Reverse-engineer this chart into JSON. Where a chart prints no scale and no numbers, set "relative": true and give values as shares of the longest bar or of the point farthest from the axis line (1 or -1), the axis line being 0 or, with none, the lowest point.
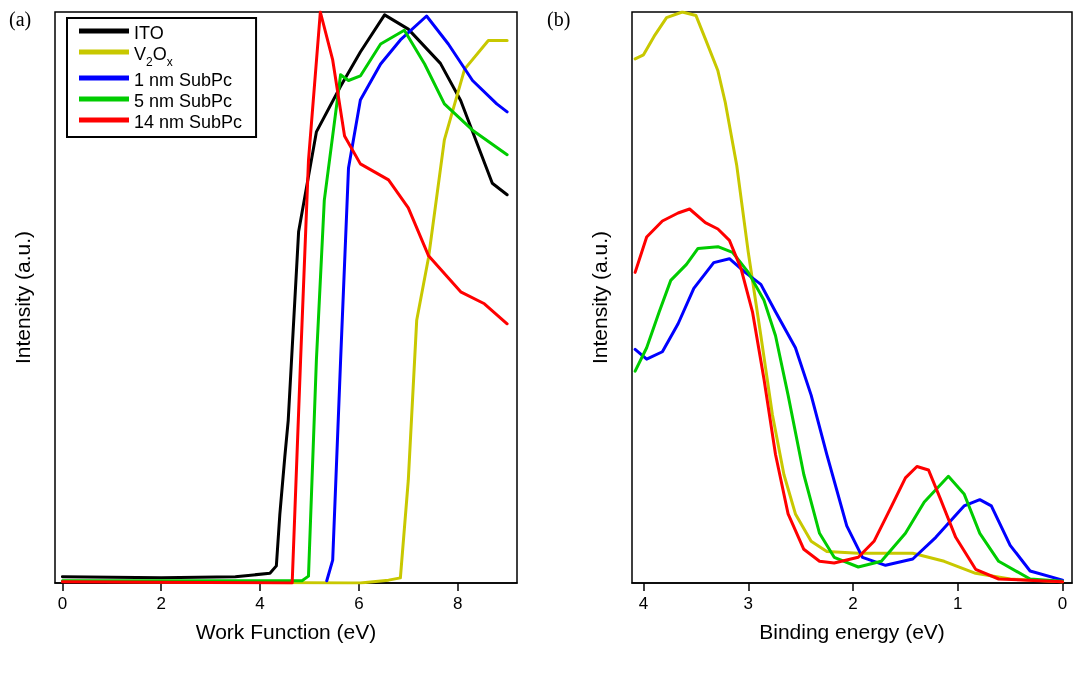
{
  "chart_data": [
    {
      "type": "line",
      "title": "(a)",
      "xlabel": "Work Function (eV)",
      "ylabel": "Intensity (a.u.)",
      "relative": true,
      "legend": "top left",
      "xlim": [
        -0.15,
        9.2
      ],
      "xticks": [
        0,
        2,
        4,
        6,
        8
      ],
      "series": [
        {
          "name": "ITO",
          "color": "#000000",
          "x": [
            0,
            2,
            3.5,
            4.2,
            4.33,
            4.4,
            4.5,
            4.57,
            4.78,
            5.14,
            5.63,
            6.03,
            6.52,
            7.0,
            7.65,
            8.06,
            8.7,
            9
          ],
          "values": [
            0.011,
            0.009,
            0.011,
            0.017,
            0.03,
            0.12,
            0.22,
            0.285,
            0.615,
            0.79,
            0.87,
            0.93,
            0.995,
            0.97,
            0.91,
            0.845,
            0.7,
            0.68
          ]
        },
        {
          "name": "V$_{2}$O$_{x}$",
          "color": "#c8c800",
          "x": [
            0,
            5.8,
            6.03,
            6.6,
            6.84,
            7.0,
            7.17,
            7.41,
            7.73,
            8.14,
            8.62,
            9
          ],
          "values": [
            0.003,
            0.0,
            0.0,
            0.005,
            0.009,
            0.18,
            0.46,
            0.57,
            0.776,
            0.9,
            0.95,
            0.95
          ]
        },
        {
          "name": "1 nm SubPc",
          "color": "#0000ff",
          "x": [
            5.35,
            5.47,
            5.63,
            5.79,
            6.03,
            6.44,
            6.84,
            7.37,
            7.81,
            8.3,
            8.79,
            9
          ],
          "values": [
            0.004,
            0.04,
            0.39,
            0.727,
            0.846,
            0.909,
            0.951,
            0.993,
            0.944,
            0.88,
            0.839,
            0.825
          ]
        },
        {
          "name": "5 nm SubPc",
          "color": "#00cc00",
          "x": [
            0,
            4.85,
            4.98,
            5.14,
            5.3,
            5.63,
            5.79,
            6.03,
            6.44,
            6.92,
            7.33,
            7.73,
            8.3,
            9
          ],
          "values": [
            0.004,
            0.004,
            0.012,
            0.39,
            0.67,
            0.89,
            0.88,
            0.888,
            0.944,
            0.968,
            0.909,
            0.839,
            0.793,
            0.75
          ]
        },
        {
          "name": "14 nm SubPc",
          "color": "#ff0000",
          "x": [
            0,
            4.65,
            4.82,
            4.98,
            5.22,
            5.47,
            5.71,
            6.03,
            6.6,
            7.0,
            7.41,
            8.06,
            8.54,
            9
          ],
          "values": [
            0.002,
            0.0,
            0.39,
            0.74,
            1.0,
            0.916,
            0.783,
            0.734,
            0.706,
            0.657,
            0.573,
            0.51,
            0.489,
            0.454
          ]
        }
      ]
    },
    {
      "type": "line",
      "title": "(b)",
      "xlabel": "Binding energy (eV)",
      "ylabel": "Intensity (a.u.)",
      "relative": true,
      "xlim": [
        4.11,
        -0.09
      ],
      "xticks": [
        4,
        3,
        2,
        1,
        0
      ],
      "series": [
        {
          "color": "#c8c800",
          "x": [
            4.08,
            4.0,
            3.89,
            3.78,
            3.63,
            3.5,
            3.41,
            3.29,
            3.22,
            3.11,
            3.0,
            2.88,
            2.77,
            2.66,
            2.55,
            2.4,
            2.25,
            1.95,
            1.43,
            1.13,
            0.83,
            0.5,
            0
          ],
          "values": [
            0.918,
            0.925,
            0.96,
            0.99,
            1.0,
            0.994,
            0.953,
            0.897,
            0.842,
            0.731,
            0.579,
            0.433,
            0.295,
            0.19,
            0.121,
            0.073,
            0.055,
            0.052,
            0.052,
            0.038,
            0.017,
            0.007,
            0.002
          ]
        },
        {
          "color": "#0000ff",
          "x": [
            4.08,
            3.97,
            3.82,
            3.67,
            3.52,
            3.33,
            3.18,
            3.03,
            2.88,
            2.74,
            2.55,
            2.4,
            2.25,
            2.06,
            1.91,
            1.69,
            1.43,
            1.21,
            0.94,
            0.79,
            0.68,
            0.5,
            0.31,
            0
          ],
          "values": [
            0.409,
            0.392,
            0.405,
            0.454,
            0.516,
            0.561,
            0.568,
            0.544,
            0.523,
            0.475,
            0.412,
            0.329,
            0.225,
            0.1,
            0.045,
            0.031,
            0.042,
            0.08,
            0.135,
            0.146,
            0.135,
            0.066,
            0.021,
            0.005
          ]
        },
        {
          "color": "#00cc00",
          "x": [
            4.08,
            3.97,
            3.85,
            3.74,
            3.59,
            3.48,
            3.29,
            3.15,
            3.0,
            2.85,
            2.74,
            2.62,
            2.47,
            2.32,
            2.18,
            1.95,
            1.73,
            1.5,
            1.32,
            1.09,
            0.94,
            0.79,
            0.61,
            0.31,
            0
          ],
          "values": [
            0.371,
            0.412,
            0.475,
            0.53,
            0.558,
            0.586,
            0.589,
            0.579,
            0.544,
            0.495,
            0.433,
            0.329,
            0.19,
            0.087,
            0.045,
            0.028,
            0.038,
            0.087,
            0.142,
            0.187,
            0.156,
            0.087,
            0.038,
            0.007,
            0.003
          ]
        },
        {
          "color": "#ff0000",
          "x": [
            4.08,
            3.97,
            3.82,
            3.67,
            3.56,
            3.41,
            3.29,
            3.18,
            3.07,
            2.96,
            2.85,
            2.74,
            2.62,
            2.47,
            2.32,
            2.18,
            1.95,
            1.8,
            1.65,
            1.5,
            1.39,
            1.28,
            1.17,
            1.02,
            0.83,
            0.61,
            0
          ],
          "values": [
            0.544,
            0.606,
            0.634,
            0.648,
            0.655,
            0.631,
            0.62,
            0.6,
            0.551,
            0.475,
            0.357,
            0.225,
            0.121,
            0.059,
            0.038,
            0.035,
            0.045,
            0.073,
            0.128,
            0.184,
            0.204,
            0.198,
            0.149,
            0.08,
            0.024,
            0.007,
            0.002
          ]
        }
      ]
    }
  ]
}
